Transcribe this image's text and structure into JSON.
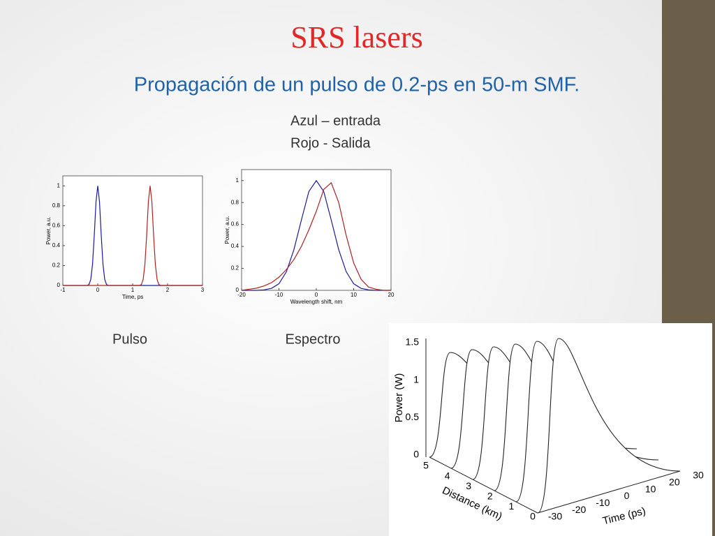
{
  "slide": {
    "title": "SRS lasers",
    "subtitle": "Propagación de un pulso de  0.2-ps en 50-m SMF.",
    "legend_lines": [
      "Azul  – entrada",
      "Rojo - Salida"
    ],
    "captions": [
      "Pulso",
      "Espectro"
    ]
  },
  "chart_data": [
    {
      "type": "line",
      "xlabel": "Time, ps",
      "ylabel": "Power, a.u.",
      "x": [
        -1,
        -0.3,
        -0.25,
        -0.2,
        -0.15,
        -0.1,
        -0.05,
        0,
        0.05,
        0.1,
        0.15,
        0.2,
        0.25,
        0.3,
        1.2,
        1.25,
        1.3,
        1.35,
        1.4,
        1.45,
        1.5,
        1.55,
        1.6,
        1.65,
        1.7,
        1.75,
        1.8,
        3
      ],
      "series": [
        {
          "color": "#1a1aa0",
          "values": [
            0,
            0,
            0.01,
            0.06,
            0.21,
            0.5,
            0.84,
            1,
            0.84,
            0.5,
            0.21,
            0.06,
            0.01,
            0,
            0,
            0,
            0,
            0,
            0,
            0,
            0,
            0,
            0,
            0,
            0,
            0,
            0,
            0
          ]
        },
        {
          "color": "#b02020",
          "values": [
            0,
            0,
            0,
            0,
            0,
            0,
            0,
            0,
            0,
            0,
            0,
            0,
            0,
            0,
            0,
            0.01,
            0.06,
            0.21,
            0.5,
            0.84,
            1,
            0.84,
            0.5,
            0.21,
            0.06,
            0.01,
            0,
            0
          ]
        }
      ],
      "xlim": [
        -1,
        3
      ],
      "xticks": [
        -1,
        0,
        1,
        2,
        3
      ],
      "ylim": [
        0,
        1.1
      ],
      "yticks": [
        0,
        0.2,
        0.4,
        0.6,
        0.8,
        1
      ]
    },
    {
      "type": "line",
      "xlabel": "Wavelength shift, nm",
      "ylabel": "Power, a.u.",
      "x": [
        -20,
        -18,
        -16,
        -14,
        -12,
        -10,
        -8,
        -6,
        -4,
        -2,
        0,
        2,
        4,
        6,
        8,
        10,
        12,
        14,
        16,
        18,
        20
      ],
      "series": [
        {
          "color": "#1a1aa0",
          "values": [
            0,
            0,
            0,
            0.004,
            0.018,
            0.06,
            0.17,
            0.37,
            0.64,
            0.9,
            1,
            0.9,
            0.64,
            0.37,
            0.17,
            0.06,
            0.018,
            0.004,
            0,
            0,
            0
          ]
        },
        {
          "color": "#b02020",
          "values": [
            0,
            0.01,
            0.02,
            0.04,
            0.07,
            0.12,
            0.19,
            0.28,
            0.4,
            0.55,
            0.72,
            0.92,
            0.98,
            0.8,
            0.5,
            0.25,
            0.1,
            0.03,
            0.01,
            0,
            0
          ]
        }
      ],
      "xlim": [
        -20,
        20
      ],
      "xticks": [
        -20,
        -10,
        0,
        10,
        20
      ],
      "ylim": [
        0,
        1.1
      ],
      "yticks": [
        0,
        0.2,
        0.4,
        0.6,
        0.8,
        1
      ]
    }
  ],
  "figure": {
    "power_label": "Power (W)",
    "distance_label": "Distance (km)",
    "time_label": "Time (ps)",
    "power_ticks": [
      0,
      0.5,
      1,
      1.5
    ],
    "distance_ticks": [
      0,
      1,
      2,
      3,
      4,
      5
    ],
    "time_ticks": [
      -30,
      -20,
      -10,
      0,
      10,
      20,
      30
    ]
  }
}
